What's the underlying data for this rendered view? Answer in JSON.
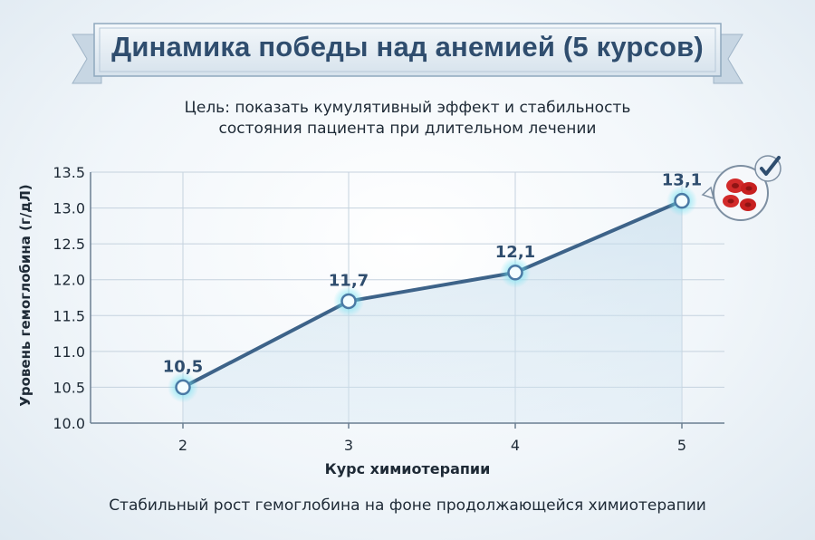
{
  "title": "Динамика победы над анемией (5 курсов)",
  "subtitle_lines": [
    "Цель: показать кумулятивный эффект и стабильность",
    "состояния пациента при длительном лечении"
  ],
  "footer": "Стабильный рост гемоглобина на фоне продолжающейся химиотерапии",
  "colors": {
    "line": "#3d6389",
    "title": "#2f4d6e",
    "point_glow": "#6fe3f2",
    "ribbon": "#e6eef5",
    "blood_cells": "#d22a2a"
  },
  "icons": [
    "red-blood-cells-icon",
    "checkmark-icon"
  ],
  "chart_data": {
    "type": "line",
    "title": "Динамика победы над анемией (5 курсов)",
    "xlabel": "Курс химиотерапии",
    "ylabel": "Уровень гемоглобина (г/дЛ)",
    "categories": [
      "2",
      "3",
      "4",
      "5"
    ],
    "ylim": [
      10.0,
      13.5
    ],
    "yticks": [
      "10.0",
      "10.5",
      "11.0",
      "11.5",
      "12.0",
      "12.5",
      "13.0",
      "13.5"
    ],
    "grid": true,
    "series": [
      {
        "values": [
          10.5,
          11.7,
          12.1,
          13.1
        ],
        "labels": [
          "10,5",
          "11,7",
          "12,1",
          "13,1"
        ]
      }
    ]
  }
}
